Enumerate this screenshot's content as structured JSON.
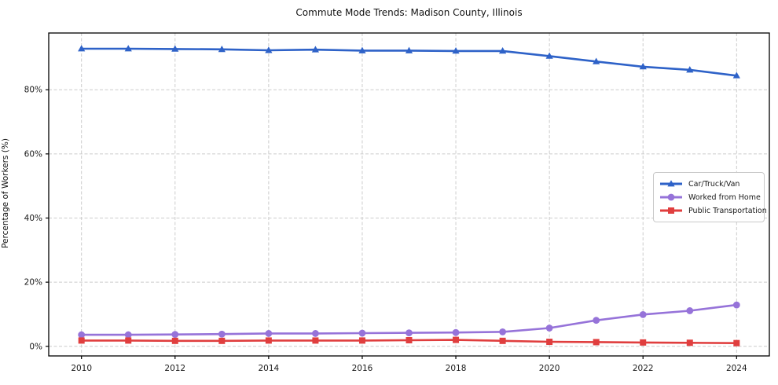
{
  "figure": {
    "title": "Commute Mode Trends: Madison County, Illinois",
    "ylabel": "Percentage of Workers (%)"
  },
  "chart_data": {
    "type": "line",
    "title": "Commute Mode Trends: Madison County, Illinois",
    "xlabel": "",
    "ylabel": "Percentage of Workers (%)",
    "x": [
      2010,
      2011,
      2012,
      2013,
      2014,
      2015,
      2016,
      2017,
      2018,
      2019,
      2020,
      2021,
      2022,
      2023,
      2024
    ],
    "xticks": [
      2010,
      2012,
      2014,
      2016,
      2018,
      2020,
      2022,
      2024
    ],
    "yticks": [
      0,
      20,
      40,
      60,
      80
    ],
    "ytick_labels": [
      "0%",
      "20%",
      "40%",
      "60%",
      "80%"
    ],
    "xlim": [
      2009.3,
      2024.7
    ],
    "ylim": [
      -3,
      97.7
    ],
    "grid": true,
    "legend_position": "center-right",
    "series": [
      {
        "name": "Car/Truck/Van",
        "color": "#2e62c8",
        "marker": "triangle",
        "values": [
          92.8,
          92.8,
          92.7,
          92.6,
          92.3,
          92.5,
          92.2,
          92.2,
          92.1,
          92.1,
          90.5,
          88.8,
          87.2,
          86.2,
          84.4
        ]
      },
      {
        "name": "Worked from Home",
        "color": "#9673d9",
        "marker": "circle",
        "values": [
          3.6,
          3.6,
          3.7,
          3.8,
          4.0,
          4.0,
          4.1,
          4.2,
          4.3,
          4.5,
          5.7,
          8.1,
          9.9,
          11.1,
          12.9
        ]
      },
      {
        "name": "Public Transportation",
        "color": "#e03e3e",
        "marker": "square",
        "values": [
          1.8,
          1.8,
          1.7,
          1.7,
          1.8,
          1.8,
          1.8,
          1.9,
          2.0,
          1.7,
          1.4,
          1.3,
          1.2,
          1.1,
          1.0
        ]
      }
    ],
    "colors": {
      "grid": "#cccccc",
      "spine": "#000000",
      "tick_text": "#1a1a1a",
      "background": "#ffffff"
    }
  }
}
